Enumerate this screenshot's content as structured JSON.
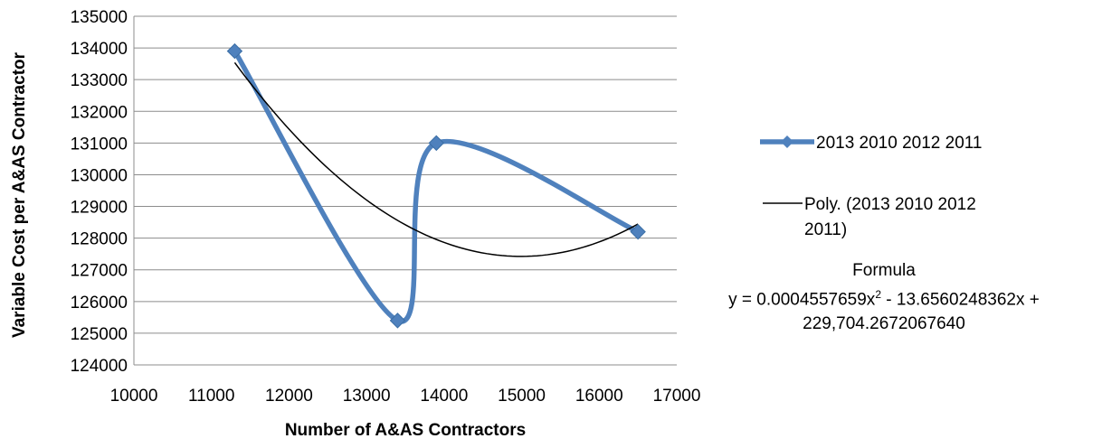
{
  "chart_data": {
    "type": "scatter",
    "xlabel": "Number of A&AS Contractors",
    "ylabel": "Variable Cost per A&AS Contractor",
    "xlim": [
      10000,
      17000
    ],
    "ylim": [
      124000,
      135000
    ],
    "x_ticks": [
      "10000",
      "11000",
      "12000",
      "13000",
      "14000",
      "15000",
      "16000",
      "17000"
    ],
    "y_ticks": [
      "124000",
      "125000",
      "126000",
      "127000",
      "128000",
      "129000",
      "130000",
      "131000",
      "132000",
      "133000",
      "134000",
      "135000"
    ],
    "grid": "horizontal",
    "legend_position": "right",
    "series": [
      {
        "name": "2013 2010 2012 2011",
        "x": [
          11300,
          13400,
          13900,
          16500
        ],
        "y": [
          133900,
          125400,
          131000,
          128200
        ],
        "line": "smooth",
        "marker": "diamond",
        "color": "#4F81BD"
      }
    ],
    "trendline": {
      "name": "Poly. (2013 2010 2012 2011)",
      "type": "polynomial",
      "color": "#000000"
    },
    "annotation": {
      "title": "Formula",
      "equation_prefix": "y = 0.0004557659x",
      "equation_exponent": "2",
      "equation_suffix": " - 13.6560248362x +",
      "equation_line2": "229,704.2672067640"
    }
  }
}
